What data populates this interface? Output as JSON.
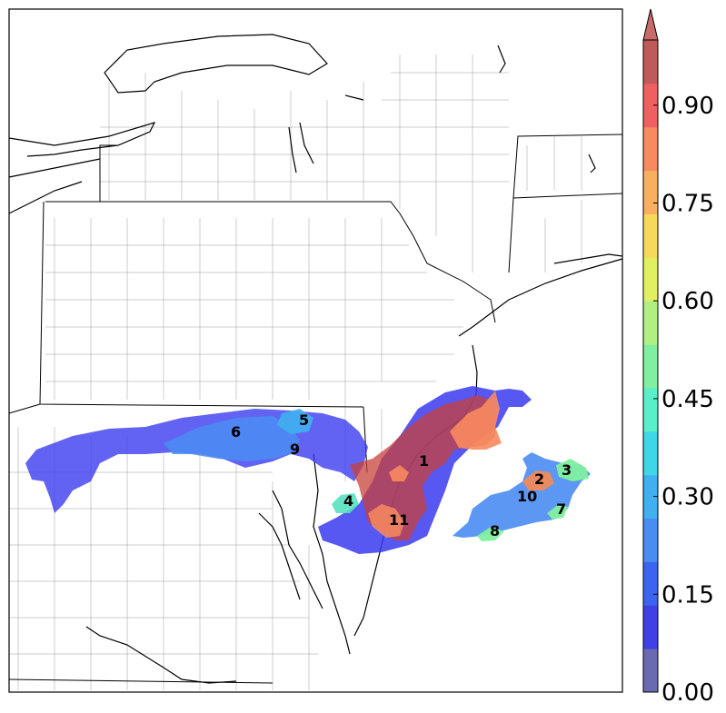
{
  "colorbar": {
    "ticks": [
      "0.00",
      "0.15",
      "0.30",
      "0.45",
      "0.60",
      "0.75",
      "0.90"
    ],
    "min": 0.0,
    "max": 1.0,
    "colors": [
      "#6a6ab0",
      "#4040e6",
      "#3c64f0",
      "#4a8cf2",
      "#3fb0f0",
      "#3fd6e6",
      "#57f0c8",
      "#80f0a0",
      "#b0f080",
      "#e0f060",
      "#f6d85a",
      "#f8b060",
      "#f88a60",
      "#f06060",
      "#c05a5a"
    ]
  },
  "regions": [
    {
      "id": "1",
      "label": "1"
    },
    {
      "id": "2",
      "label": "2"
    },
    {
      "id": "3",
      "label": "3"
    },
    {
      "id": "4",
      "label": "4"
    },
    {
      "id": "5",
      "label": "5"
    },
    {
      "id": "6",
      "label": "6"
    },
    {
      "id": "7",
      "label": "7"
    },
    {
      "id": "8",
      "label": "8"
    },
    {
      "id": "9",
      "label": "9"
    },
    {
      "id": "10",
      "label": "10"
    },
    {
      "id": "11",
      "label": "11"
    }
  ]
}
